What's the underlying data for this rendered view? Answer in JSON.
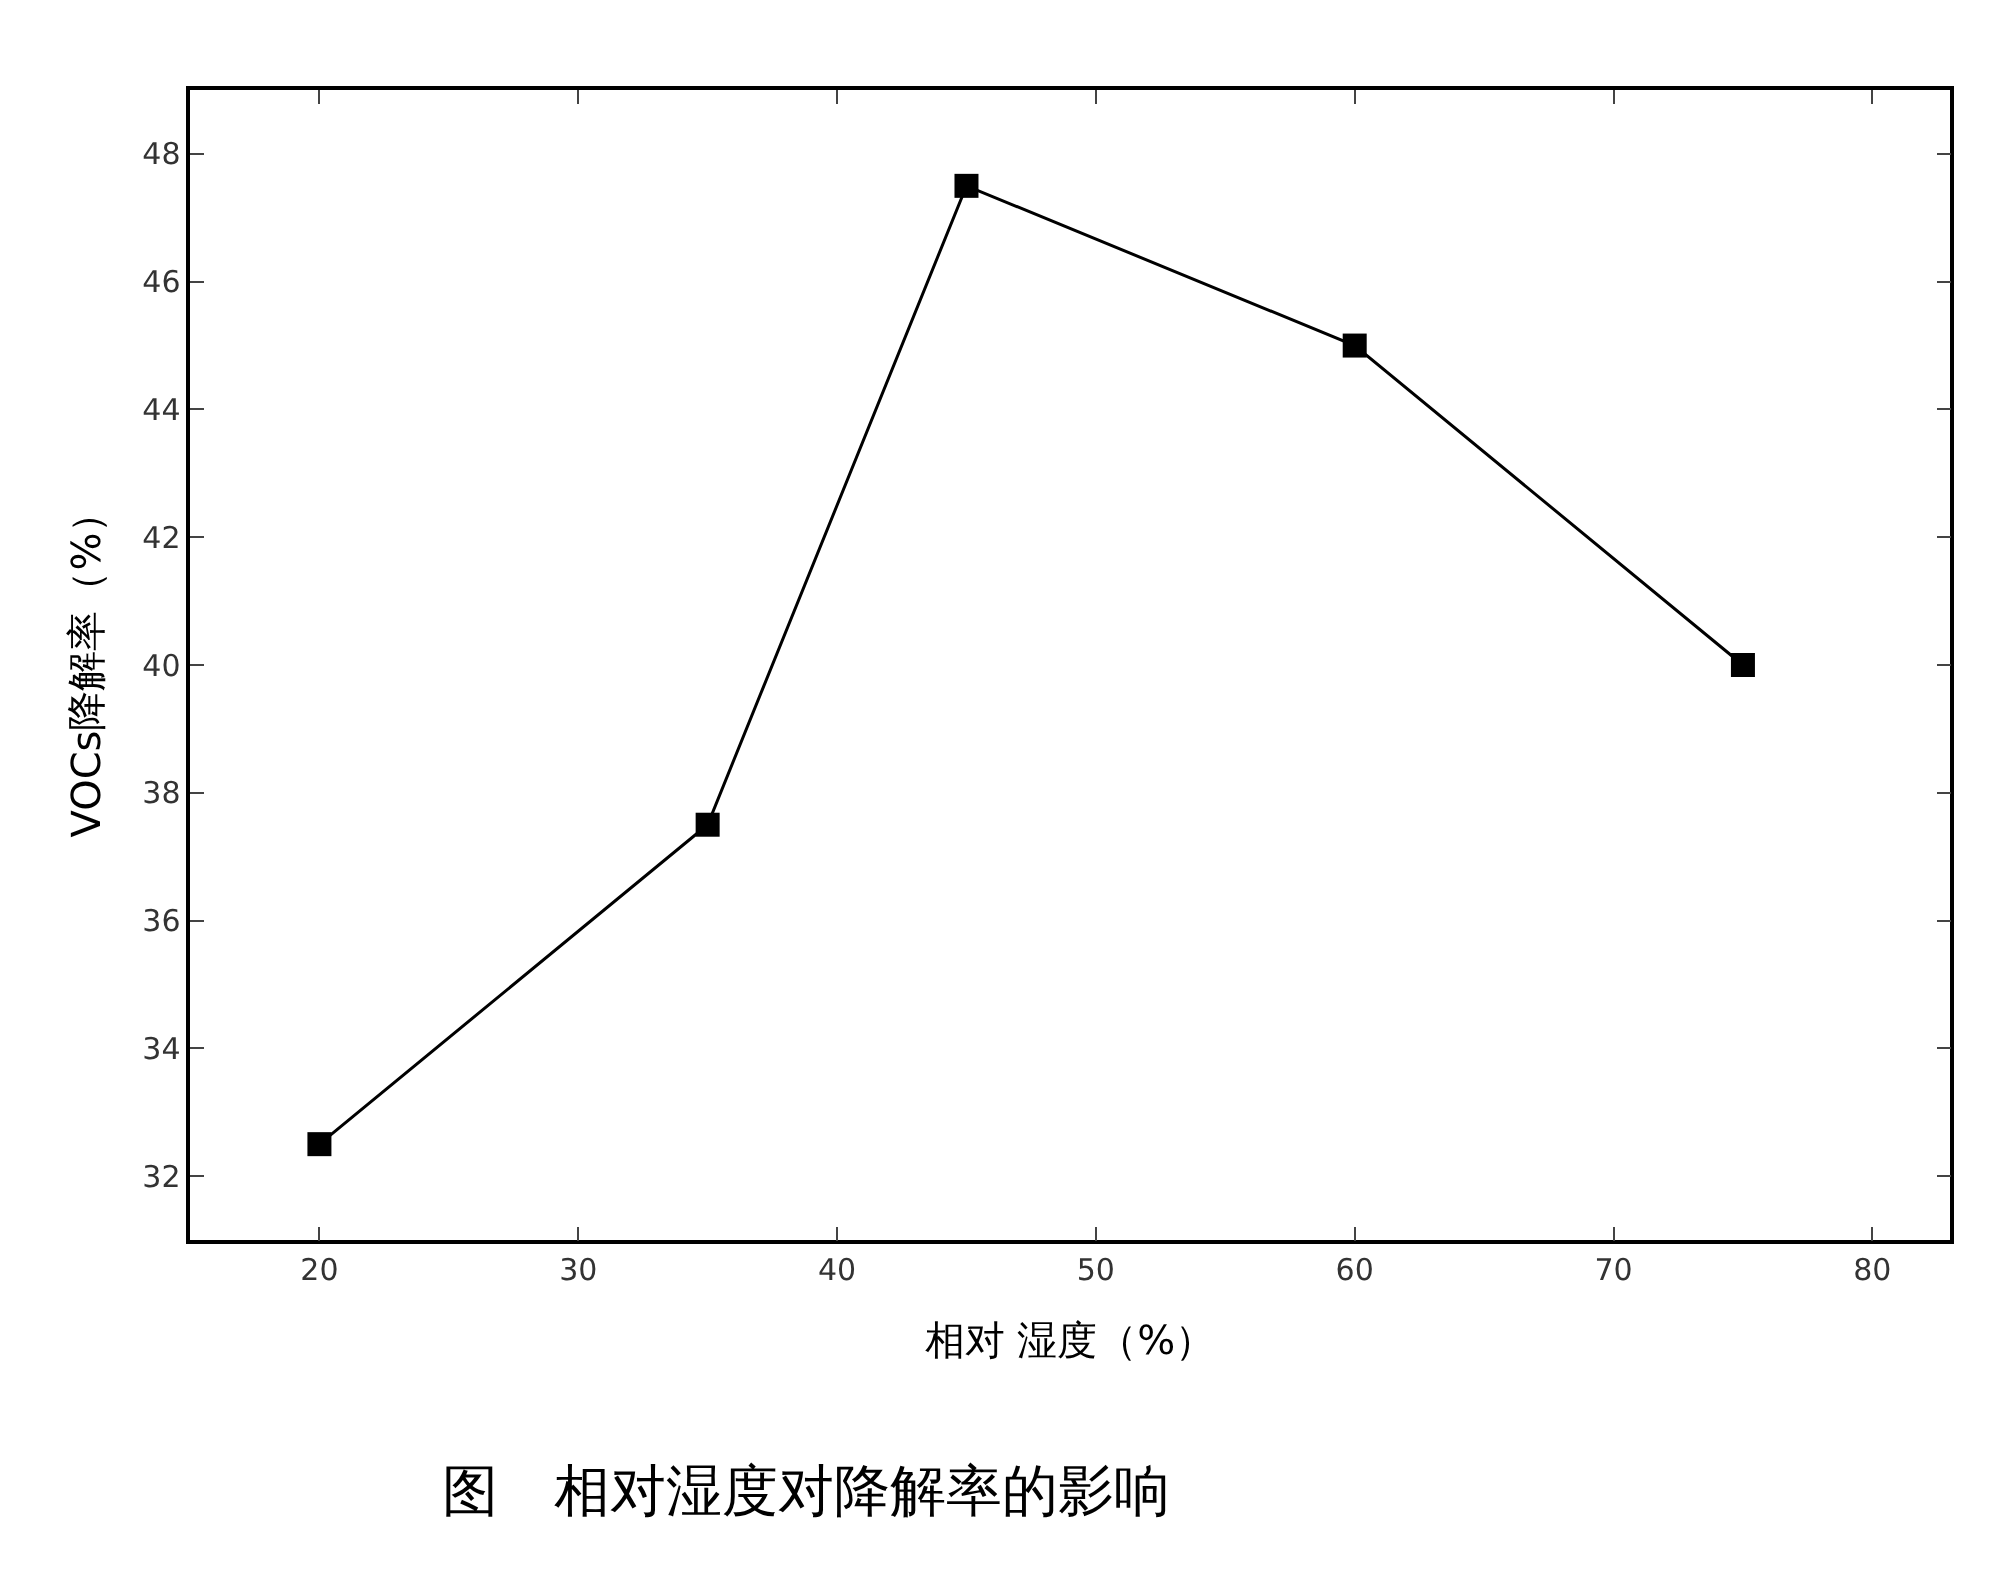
{
  "chart_data": {
    "type": "line",
    "xlabel": "相对 湿度（%）",
    "ylabel": "VOCs降解率（%）",
    "annotations": [
      "图　相对湿度对降解率的影响"
    ],
    "x": [
      20,
      35,
      45,
      60,
      75
    ],
    "series": [
      {
        "color": "#000000",
        "values": [
          32.5,
          37.5,
          47.5,
          45,
          40
        ]
      }
    ],
    "xlim": [
      15,
      83
    ],
    "xticks": [
      20,
      30,
      40,
      50,
      60,
      70,
      80
    ],
    "ylim": [
      31,
      49
    ],
    "yticks": [
      32,
      34,
      36,
      38,
      40,
      42,
      44,
      46,
      48
    ],
    "marker": "square",
    "line_style": "solid"
  }
}
